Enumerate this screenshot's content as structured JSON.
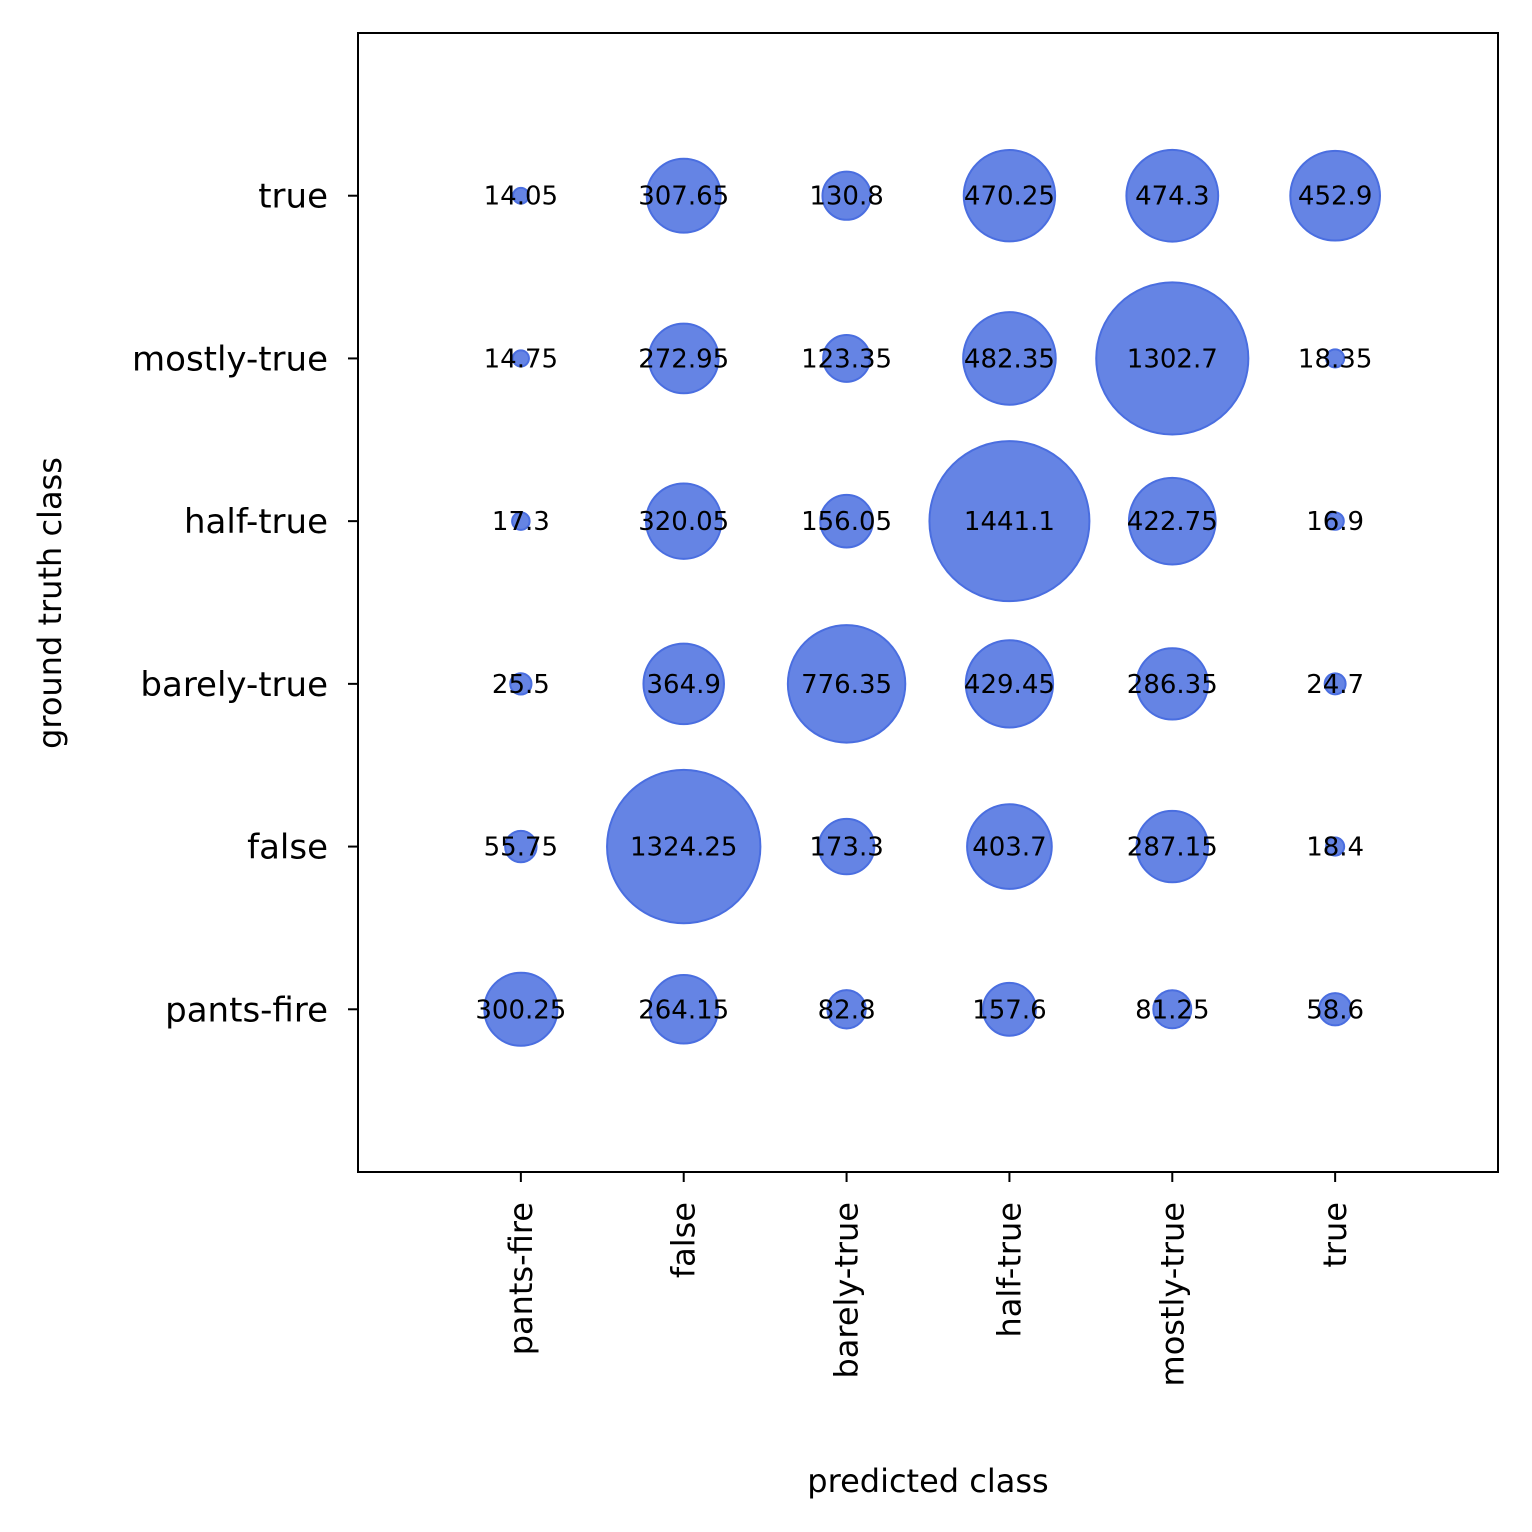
{
  "chart_data": {
    "type": "scatter",
    "subtype": "bubble",
    "title": "",
    "xlabel": "predicted class",
    "ylabel": "ground truth class",
    "x_categories": [
      "pants-fire",
      "false",
      "barely-true",
      "half-true",
      "mostly-true",
      "true"
    ],
    "y_categories": [
      "pants-fire",
      "false",
      "barely-true",
      "half-true",
      "mostly-true",
      "true"
    ],
    "xlim": [
      -1,
      6
    ],
    "ylim": [
      -1,
      6
    ],
    "grid": false,
    "bubble_color": "#6584e4",
    "bubble_edge_color": "#4a6ee0",
    "matrix_rows_by_ground_truth": {
      "pants-fire": [
        300.25,
        264.15,
        82.8,
        157.6,
        81.25,
        58.6
      ],
      "false": [
        55.75,
        1324.25,
        173.3,
        403.7,
        287.15,
        18.4
      ],
      "barely-true": [
        25.5,
        364.9,
        776.35,
        429.45,
        286.35,
        24.7
      ],
      "half-true": [
        17.3,
        320.05,
        156.05,
        1441.1,
        422.75,
        16.9
      ],
      "mostly-true": [
        14.75,
        272.95,
        123.35,
        482.35,
        1302.7,
        18.35
      ],
      "true": [
        14.05,
        307.65,
        130.8,
        470.25,
        474.3,
        452.9
      ]
    }
  }
}
